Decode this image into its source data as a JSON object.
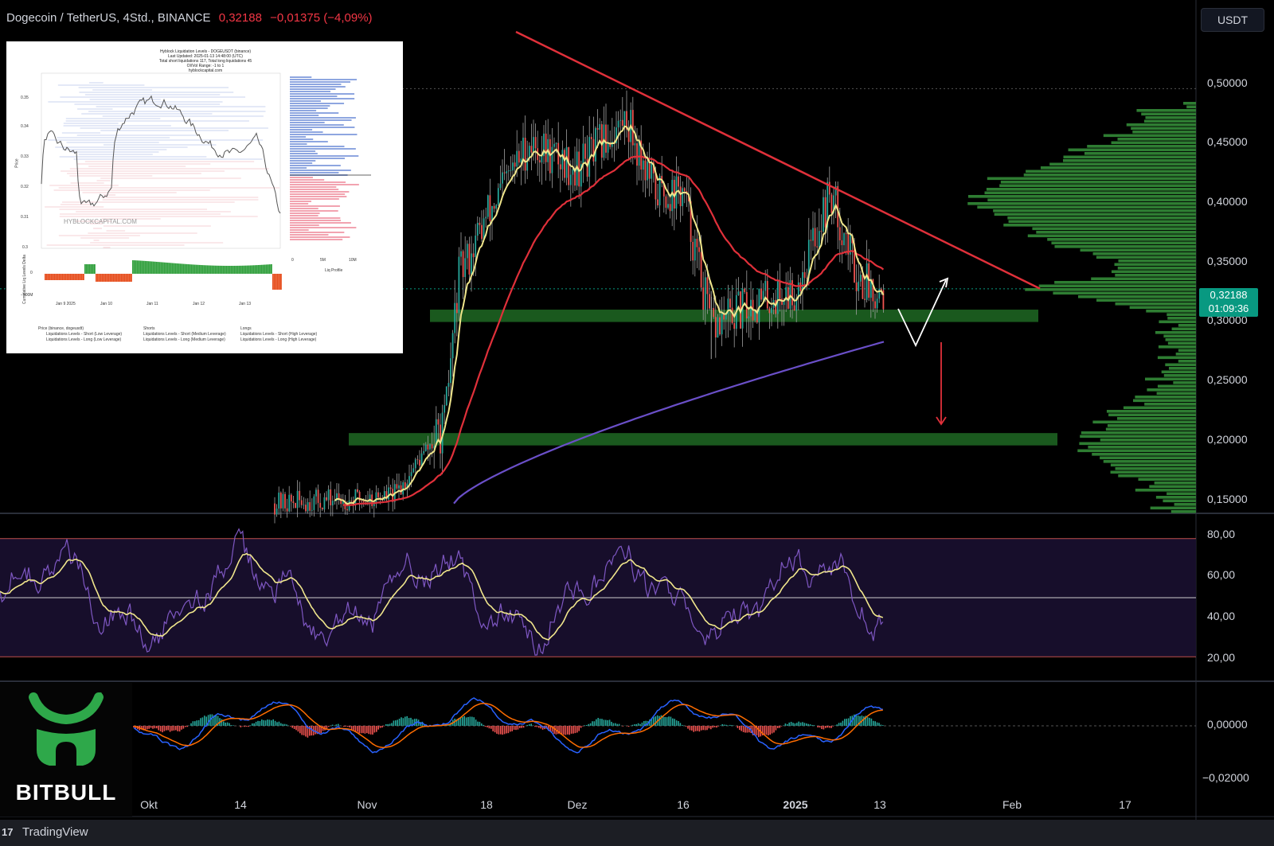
{
  "header": {
    "symbol": "Dogecoin / TetherUS, 4Std., BINANCE",
    "price": "0,32188",
    "change": "−0,01375 (−4,09%)"
  },
  "currency_button": "USDT",
  "last_price_tag": {
    "price": "0,32188",
    "countdown": "01:09:36"
  },
  "inset": {
    "title_lines": [
      "Hyblock Liquidation Levels - DOGEUSDT (binance)",
      "Last Updated: 2025-01-13 14:48:00 (UTC)",
      "Total short liquidations 117, Total long liquidations 45",
      "OI/Vol Range: -1 to 1",
      "hyblockcapital.com"
    ],
    "watermark": "HYBLOCKCAPITAL.COM",
    "y_label": "Price",
    "y_ticks": [
      "0.35",
      "0.34",
      "0.33",
      "0.32",
      "0.31",
      "0.3"
    ],
    "delta_label": "Cumulative Liq Levels Delta",
    "delta_ticks": [
      "0",
      "−500M"
    ],
    "x_ticks": [
      "Jan 9\n2025",
      "Jan 10",
      "Jan 11",
      "Jan 12",
      "Jan 13"
    ],
    "profile_ticks": [
      "0",
      "5M",
      "10M"
    ],
    "profile_label": "Liq Profile",
    "legend": [
      "Price (binance, dogeusdt)",
      "Shorts",
      "Longs",
      "Liquidations Levels - Short (Low Leverage)",
      "Liquidations Levels - Short (Medium Leverage)",
      "Liquidations Levels - Short (High Leverage)",
      "Liquidations Levels - Long (Low Leverage)",
      "Liquidations Levels - Long (Medium Leverage)",
      "Liquidations Levels - Long (High Leverage)"
    ]
  },
  "logo_text": "BITBULL",
  "footer_brand": "TradingView",
  "chart_data": [
    {
      "type": "candlestick",
      "panel": "price",
      "y_axis_ticks": [
        "0,50000",
        "0,45000",
        "0,40000",
        "0,35000",
        "0,30000",
        "0,25000",
        "0,20000",
        "0,15000"
      ],
      "ylim": [
        0.14,
        0.53
      ],
      "x_axis_ticks": [
        "Okt",
        "14",
        "Nov",
        "18",
        "Dez",
        "16",
        "2025",
        "13",
        "Feb",
        "17"
      ],
      "price_path_approx": [
        {
          "x": "Nov 5",
          "y": 0.155
        },
        {
          "x": "Nov 8",
          "y": 0.18
        },
        {
          "x": "Nov 12",
          "y": 0.21
        },
        {
          "x": "Nov 14",
          "y": 0.33
        },
        {
          "x": "Nov 18",
          "y": 0.38
        },
        {
          "x": "Nov 24",
          "y": 0.44
        },
        {
          "x": "Dez 1",
          "y": 0.42
        },
        {
          "x": "Dez 8",
          "y": 0.46
        },
        {
          "x": "Dez 12",
          "y": 0.4
        },
        {
          "x": "Dez 16",
          "y": 0.4
        },
        {
          "x": "Dez 20",
          "y": 0.29
        },
        {
          "x": "Dez 26",
          "y": 0.31
        },
        {
          "x": "Jan 1",
          "y": 0.32
        },
        {
          "x": "Jan 6",
          "y": 0.4
        },
        {
          "x": "Jan 10",
          "y": 0.33
        },
        {
          "x": "Jan 13",
          "y": 0.322
        }
      ],
      "moving_averages": [
        {
          "color": "#f0e68c",
          "label_role": "fast MA"
        },
        {
          "color": "#e0303a",
          "label_role": "medium MA"
        },
        {
          "color": "#6a4fc8",
          "label_role": "slow MA"
        }
      ],
      "last_price": 0.32188,
      "support_zones": [
        [
          0.295,
          0.305
        ],
        [
          0.195,
          0.205
        ]
      ],
      "resistance_trendline": [
        {
          "x": "Nov 20",
          "y": 0.53
        },
        {
          "x": "Feb 3",
          "y": 0.322
        }
      ],
      "dotted_high_line": 0.484
    },
    {
      "type": "line",
      "panel": "rsi",
      "y_axis_ticks": [
        "80,00",
        "60,00",
        "40,00",
        "20,00"
      ],
      "ylim": [
        10,
        90
      ],
      "bands": {
        "upper": 80,
        "lower": 20,
        "middle": 50
      },
      "series_colors": {
        "rsi": "#7e57c2",
        "signal": "#f0e68c"
      }
    },
    {
      "type": "histogram",
      "panel": "macd",
      "y_axis_ticks": [
        "0,00000",
        "−0,02000"
      ],
      "series_colors": {
        "macd": "#2962ff",
        "signal": "#ff6d00",
        "hist_up": "#26a69a",
        "hist_down": "#ef5350"
      }
    }
  ]
}
